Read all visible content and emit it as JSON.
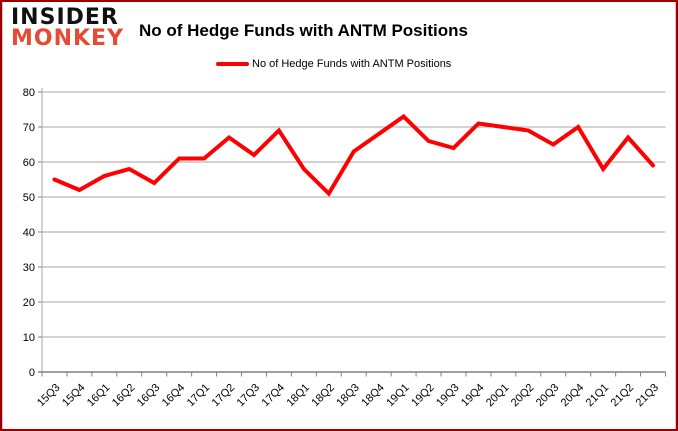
{
  "header": {
    "logo_line1": "INSIDER",
    "logo_line2": "MONKEY",
    "title": "No of Hedge Funds with ANTM Positions"
  },
  "legend": {
    "label": "No of Hedge Funds with ANTM Positions",
    "color": "#fe0000"
  },
  "colors": {
    "line": "#fe0000",
    "gridline": "#a6a6a6",
    "axis": "#808080",
    "border": "#9b0000",
    "logo_black": "#111111",
    "logo_red": "#e74a32"
  },
  "chart_data": {
    "type": "line",
    "title": "No of Hedge Funds with ANTM Positions",
    "categories": [
      "15Q3",
      "15Q4",
      "16Q1",
      "16Q2",
      "16Q3",
      "16Q4",
      "17Q1",
      "17Q2",
      "17Q3",
      "17Q4",
      "18Q1",
      "18Q2",
      "18Q3",
      "18Q4",
      "19Q1",
      "19Q2",
      "19Q3",
      "19Q4",
      "20Q1",
      "20Q2",
      "20Q3",
      "20Q4",
      "21Q1",
      "21Q2",
      "21Q3"
    ],
    "series": [
      {
        "name": "No of Hedge Funds with ANTM Positions",
        "color": "#fe0000",
        "values": [
          55,
          52,
          56,
          58,
          54,
          61,
          61,
          67,
          62,
          69,
          58,
          51,
          63,
          68,
          73,
          66,
          64,
          71,
          70,
          69,
          65,
          70,
          58,
          67,
          59
        ]
      }
    ],
    "xlabel": "",
    "ylabel": "",
    "ylim": [
      0,
      80
    ],
    "yticks": [
      0,
      10,
      20,
      30,
      40,
      50,
      60,
      70,
      80
    ],
    "grid": true,
    "legend_position": "top"
  }
}
